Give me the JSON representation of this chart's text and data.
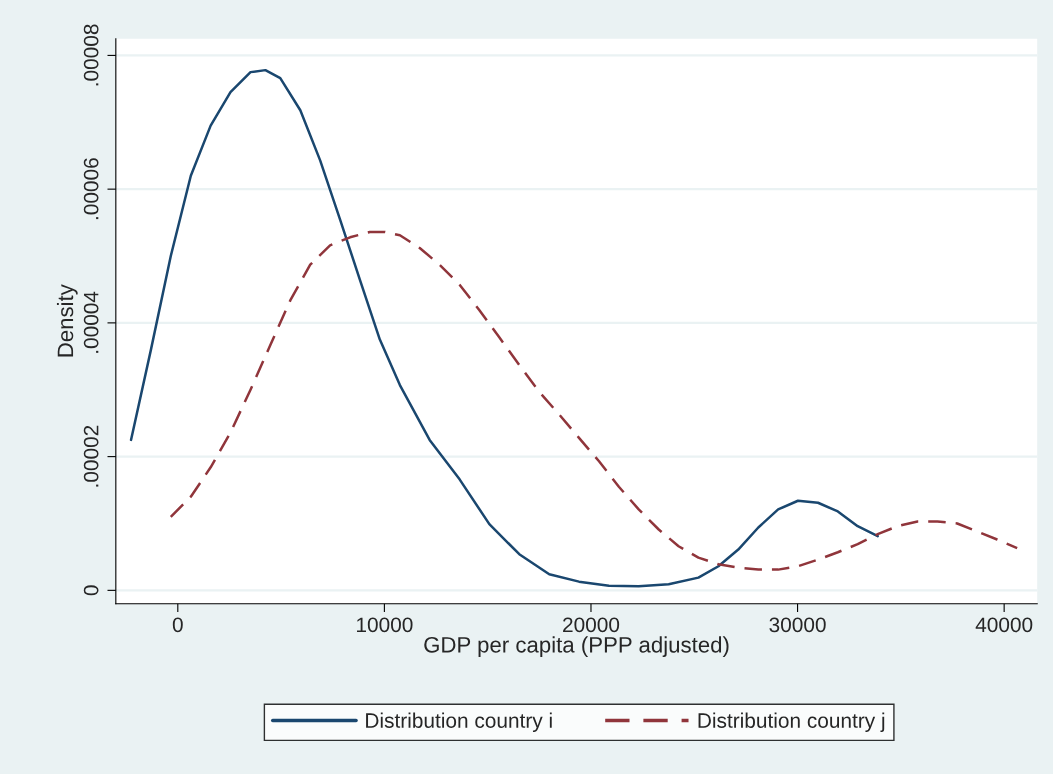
{
  "chart_data": {
    "type": "line",
    "xlabel": "GDP per capita (PPP adjusted)",
    "ylabel": "Density",
    "xlim": [
      -3000,
      41600
    ],
    "ylim": [
      -2e-06,
      8.25e-05
    ],
    "xticks": [
      0,
      10000,
      20000,
      30000,
      40000
    ],
    "yticks": [
      0,
      {
        "value": 2e-05,
        "label": ".00002"
      },
      {
        "value": 4e-05,
        "label": ".00004"
      },
      {
        "value": 6e-05,
        "label": ".00006"
      },
      {
        "value": 8e-05,
        "label": ".00008"
      }
    ],
    "grid": "y",
    "legend": "bottom",
    "marker": "none",
    "series": [
      {
        "name": "Distribution country i",
        "color": "#1a476f",
        "line_style": "solid",
        "x": [
          -2265,
          -1300,
          -340,
          630,
          1590,
          2550,
          3520,
          4240,
          4960,
          5930,
          6890,
          7860,
          8820,
          9780,
          10750,
          12190,
          13640,
          15080,
          16530,
          17980,
          19420,
          20870,
          22310,
          23760,
          25200,
          26170,
          27130,
          28100,
          29060,
          30020,
          30990,
          31950,
          32910,
          33880
        ],
        "values": [
          2.25e-05,
          3.6e-05,
          5e-05,
          6.2e-05,
          6.95e-05,
          7.45e-05,
          7.75e-05,
          7.78e-05,
          7.66e-05,
          7.18e-05,
          6.43e-05,
          5.54e-05,
          4.64e-05,
          3.75e-05,
          3.07e-05,
          2.25e-05,
          1.66e-05,
          9.9e-06,
          5.4e-06,
          2.4e-06,
          1.3e-06,
          7e-07,
          6e-07,
          9e-07,
          1.9e-06,
          3.6e-06,
          6.1e-06,
          9.4e-06,
          1.21e-05,
          1.34e-05,
          1.31e-05,
          1.18e-05,
          9.6e-06,
          8.1e-06
        ]
      },
      {
        "name": "Distribution country j",
        "color": "#90353b",
        "line_style": "dashed",
        "x": [
          -340,
          630,
          1590,
          2550,
          3520,
          4480,
          5450,
          6410,
          7370,
          8340,
          9300,
          10020,
          10750,
          11710,
          12670,
          13640,
          14600,
          15570,
          16530,
          17490,
          18460,
          19420,
          20390,
          21350,
          22310,
          23280,
          24240,
          25200,
          26170,
          27130,
          28100,
          29060,
          30020,
          30990,
          31950,
          32910,
          33880,
          34840,
          35810,
          36770,
          37730,
          38700,
          39660,
          40630
        ],
        "values": [
          1.1e-05,
          1.4e-05,
          1.84e-05,
          2.36e-05,
          3e-05,
          3.67e-05,
          4.34e-05,
          4.87e-05,
          5.16e-05,
          5.28e-05,
          5.36e-05,
          5.36e-05,
          5.31e-05,
          5.12e-05,
          4.87e-05,
          4.57e-05,
          4.19e-05,
          3.78e-05,
          3.37e-05,
          2.97e-05,
          2.63e-05,
          2.28e-05,
          1.93e-05,
          1.55e-05,
          1.21e-05,
          9.1e-06,
          6.6e-06,
          4.9e-06,
          3.9e-06,
          3.4e-06,
          3.1e-06,
          3.1e-06,
          3.6e-06,
          4.6e-06,
          5.7e-06,
          6.9e-06,
          8.4e-06,
          9.6e-06,
          1.03e-05,
          1.03e-05,
          1e-05,
          8.8e-06,
          7.6e-06,
          6.3e-06
        ]
      }
    ]
  }
}
